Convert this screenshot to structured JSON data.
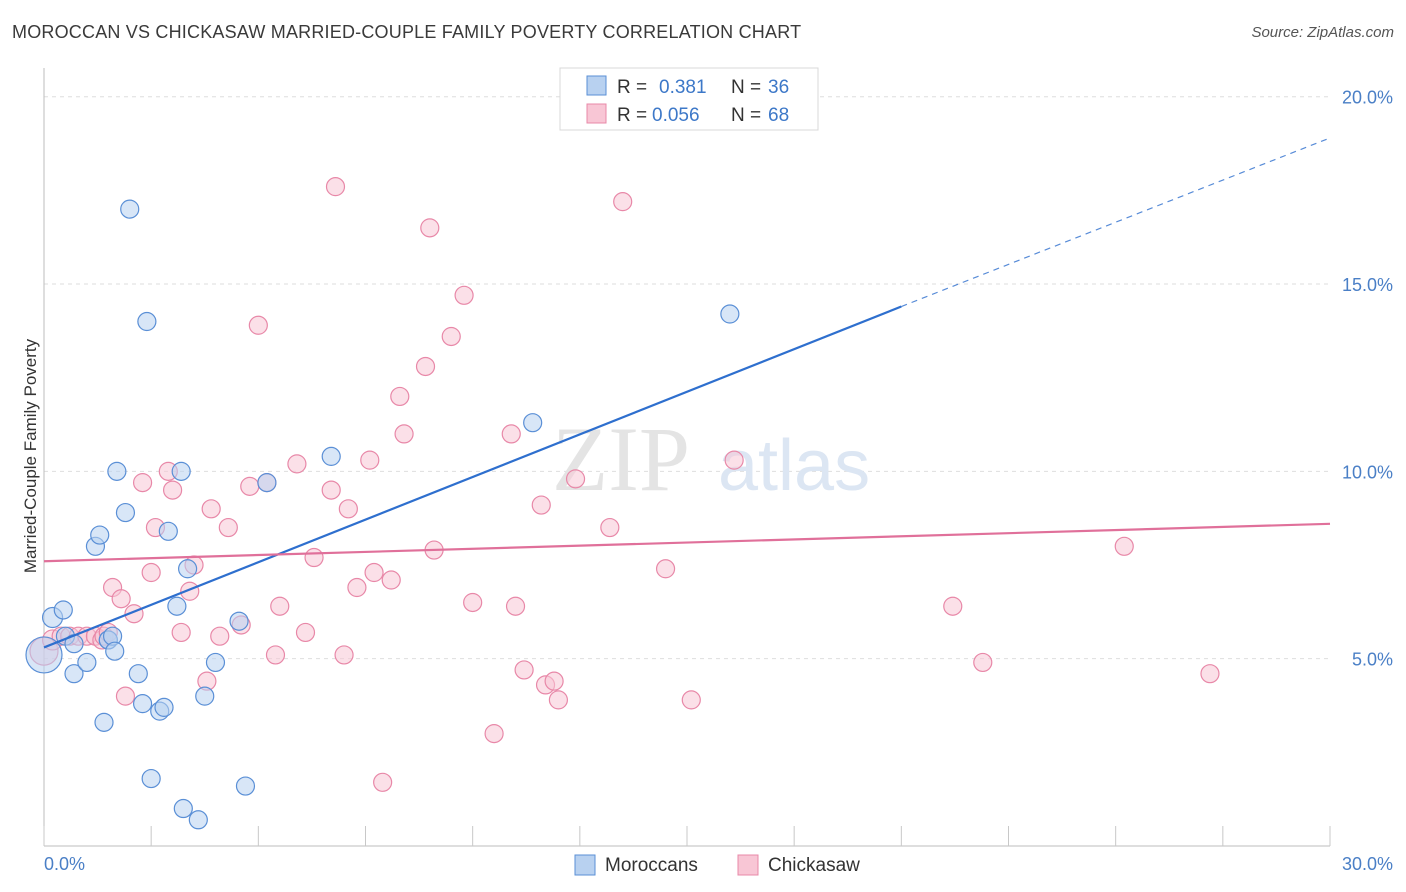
{
  "header": {
    "title": "MOROCCAN VS CHICKASAW MARRIED-COUPLE FAMILY POVERTY CORRELATION CHART",
    "source": "Source: ZipAtlas.com"
  },
  "watermark": {
    "zip": "ZIP",
    "atlas": "atlas"
  },
  "colors": {
    "blue_fill": "#b8d1f0",
    "blue_stroke": "#5a8fd6",
    "blue_line": "#2e6fce",
    "pink_fill": "#f8c6d5",
    "pink_stroke": "#e888a8",
    "pink_line": "#e0709a",
    "grid": "#dedede",
    "tick_text": "#4a7fc6"
  },
  "legend": {
    "rows": [
      {
        "r_label": "R = ",
        "r_value": "0.381",
        "n_label": "N = ",
        "n_value": "36"
      },
      {
        "r_label": "R = ",
        "r_value": "0.056",
        "n_label": "N = ",
        "n_value": "68"
      }
    ]
  },
  "bottom_legend": {
    "items": [
      "Moroccans",
      "Chickasaw"
    ]
  },
  "chart_data": {
    "type": "scatter",
    "title": "MOROCCAN VS CHICKASAW MARRIED-COUPLE FAMILY POVERTY CORRELATION CHART",
    "xlabel": "",
    "ylabel": "Married-Couple Family Poverty",
    "xlim": [
      0,
      30
    ],
    "ylim": [
      0,
      20.5
    ],
    "x_tick_labels": [
      "0.0%",
      "30.0%"
    ],
    "y_ticks": [
      5,
      10,
      15,
      20
    ],
    "y_tick_labels": [
      "5.0%",
      "10.0%",
      "15.0%",
      "20.0%"
    ],
    "legend_position": "top-center",
    "series": [
      {
        "name": "Moroccans",
        "r": 0.381,
        "n": 36,
        "trend": {
          "x0": 0.0,
          "y0": 5.3,
          "x1": 20.0,
          "y1": 14.4,
          "dash_to_x": 30.0,
          "dash_to_y": 18.9
        },
        "points": [
          [
            0.0,
            5.1,
            18
          ],
          [
            0.2,
            6.1,
            10
          ],
          [
            0.45,
            6.3,
            9
          ],
          [
            0.5,
            5.6,
            9
          ],
          [
            0.7,
            5.4,
            9
          ],
          [
            0.7,
            4.6,
            9
          ],
          [
            1.0,
            4.9,
            9
          ],
          [
            1.2,
            8.0,
            9
          ],
          [
            1.3,
            8.3,
            9
          ],
          [
            1.4,
            3.3,
            9
          ],
          [
            1.5,
            5.5,
            9
          ],
          [
            1.5,
            5.5,
            9
          ],
          [
            1.6,
            5.6,
            9
          ],
          [
            1.65,
            5.2,
            9
          ],
          [
            1.7,
            10.0,
            9
          ],
          [
            1.9,
            8.9,
            9
          ],
          [
            2.0,
            17.0,
            9
          ],
          [
            2.2,
            4.6,
            9
          ],
          [
            2.3,
            3.8,
            9
          ],
          [
            2.4,
            14.0,
            9
          ],
          [
            2.5,
            1.8,
            9
          ],
          [
            2.7,
            3.6,
            9
          ],
          [
            2.8,
            3.7,
            9
          ],
          [
            2.9,
            8.4,
            9
          ],
          [
            3.1,
            6.4,
            9
          ],
          [
            3.2,
            10.0,
            9
          ],
          [
            3.25,
            1.0,
            9
          ],
          [
            3.35,
            7.4,
            9
          ],
          [
            3.6,
            0.7,
            9
          ],
          [
            3.75,
            4.0,
            9
          ],
          [
            4.0,
            4.9,
            9
          ],
          [
            4.55,
            6.0,
            9
          ],
          [
            4.7,
            1.6,
            9
          ],
          [
            5.2,
            9.7,
            9
          ],
          [
            6.7,
            10.4,
            9
          ],
          [
            11.4,
            11.3,
            9
          ],
          [
            16.0,
            14.2,
            9
          ]
        ]
      },
      {
        "name": "Chickasaw",
        "r": 0.056,
        "n": 68,
        "trend": {
          "x0": 0.0,
          "y0": 7.6,
          "x1": 30.0,
          "y1": 8.6
        },
        "points": [
          [
            0.0,
            5.2,
            14
          ],
          [
            0.2,
            5.5,
            10
          ],
          [
            0.4,
            5.6,
            9
          ],
          [
            0.6,
            5.6,
            9
          ],
          [
            0.8,
            5.6,
            9
          ],
          [
            1.0,
            5.6,
            9
          ],
          [
            1.2,
            5.6,
            9
          ],
          [
            1.35,
            5.5,
            9
          ],
          [
            1.4,
            5.6,
            9
          ],
          [
            1.5,
            5.7,
            9
          ],
          [
            1.6,
            6.9,
            9
          ],
          [
            1.8,
            6.6,
            9
          ],
          [
            1.9,
            4.0,
            9
          ],
          [
            2.1,
            6.2,
            9
          ],
          [
            2.3,
            9.7,
            9
          ],
          [
            2.5,
            7.3,
            9
          ],
          [
            2.6,
            8.5,
            9
          ],
          [
            2.9,
            10.0,
            9
          ],
          [
            3.0,
            9.5,
            9
          ],
          [
            3.2,
            5.7,
            9
          ],
          [
            3.4,
            6.8,
            9
          ],
          [
            3.5,
            7.5,
            9
          ],
          [
            3.8,
            4.4,
            9
          ],
          [
            3.9,
            9.0,
            9
          ],
          [
            4.1,
            5.6,
            9
          ],
          [
            4.3,
            8.5,
            9
          ],
          [
            4.6,
            5.9,
            9
          ],
          [
            4.8,
            9.6,
            9
          ],
          [
            5.0,
            13.9,
            9
          ],
          [
            5.2,
            9.7,
            9
          ],
          [
            5.4,
            5.1,
            9
          ],
          [
            5.5,
            6.4,
            9
          ],
          [
            5.9,
            10.2,
            9
          ],
          [
            6.1,
            5.7,
            9
          ],
          [
            6.3,
            7.7,
            9
          ],
          [
            6.7,
            9.5,
            9
          ],
          [
            6.8,
            17.6,
            9
          ],
          [
            7.0,
            5.1,
            9
          ],
          [
            7.1,
            9.0,
            9
          ],
          [
            7.3,
            6.9,
            9
          ],
          [
            7.6,
            10.3,
            9
          ],
          [
            7.7,
            7.3,
            9
          ],
          [
            7.9,
            1.7,
            9
          ],
          [
            8.1,
            7.1,
            9
          ],
          [
            8.3,
            12.0,
            9
          ],
          [
            8.4,
            11.0,
            9
          ],
          [
            8.9,
            12.8,
            9
          ],
          [
            9.0,
            16.5,
            9
          ],
          [
            9.1,
            7.9,
            9
          ],
          [
            9.5,
            13.6,
            9
          ],
          [
            9.8,
            14.7,
            9
          ],
          [
            10.0,
            6.5,
            9
          ],
          [
            10.5,
            3.0,
            9
          ],
          [
            10.9,
            11.0,
            9
          ],
          [
            11.0,
            6.4,
            9
          ],
          [
            11.2,
            4.7,
            9
          ],
          [
            11.6,
            9.1,
            9
          ],
          [
            11.7,
            4.3,
            9
          ],
          [
            11.9,
            4.4,
            9
          ],
          [
            12.0,
            3.9,
            9
          ],
          [
            12.4,
            9.8,
            9
          ],
          [
            13.2,
            8.5,
            9
          ],
          [
            13.5,
            17.2,
            9
          ],
          [
            14.5,
            7.4,
            9
          ],
          [
            15.1,
            3.9,
            9
          ],
          [
            16.1,
            10.3,
            9
          ],
          [
            21.2,
            6.4,
            9
          ],
          [
            21.9,
            4.9,
            9
          ],
          [
            25.2,
            8.0,
            9
          ],
          [
            27.2,
            4.6,
            9
          ]
        ]
      }
    ]
  }
}
